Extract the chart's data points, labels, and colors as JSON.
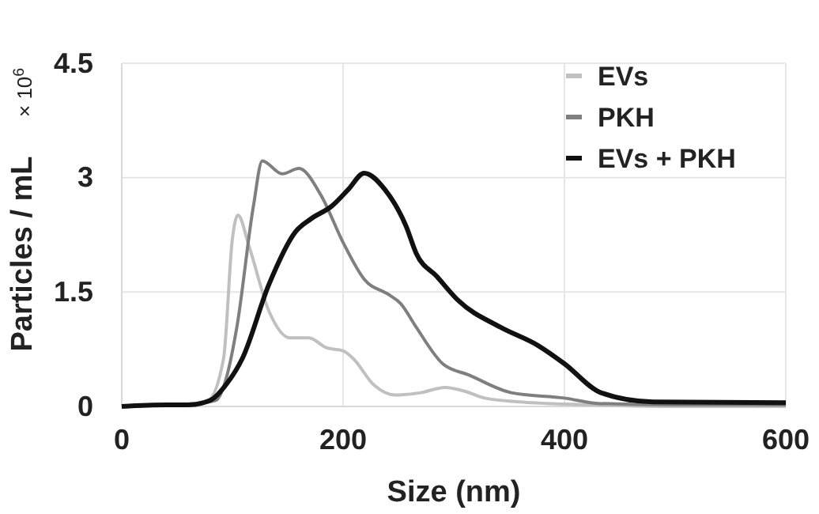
{
  "chart_data": {
    "type": "line",
    "xlabel": "Size (nm)",
    "ylabel": "Particles / mL",
    "annotations": [
      "× 10$^{6}$"
    ],
    "xlim": [
      0,
      600
    ],
    "xticks": [
      0,
      200,
      400,
      600
    ],
    "ylim": [
      0,
      4.5
    ],
    "yticks": [
      0,
      1.5,
      3,
      4.5
    ],
    "grid": true,
    "legend": "top right",
    "marker": "none",
    "line_style": "solid",
    "series": [
      {
        "name": "EVs",
        "color": "#c0c0c0",
        "x": [
          0,
          40,
          60,
          78,
          92,
          100,
          105,
          115,
          133,
          152,
          169,
          185,
          200,
          209,
          228,
          247,
          270,
          292,
          310,
          328,
          360,
          400,
          450,
          500,
          600
        ],
        "values": [
          0,
          0.02,
          0.03,
          0.08,
          0.63,
          2.2,
          2.51,
          2.1,
          1.25,
          0.9,
          0.9,
          0.77,
          0.73,
          0.63,
          0.28,
          0.15,
          0.18,
          0.25,
          0.2,
          0.11,
          0.06,
          0.03,
          0.01,
          0,
          0
        ]
      },
      {
        "name": "PKH",
        "color": "#7f7f7f",
        "x": [
          0,
          40,
          60,
          85,
          95,
          104,
          119,
          127,
          145,
          160,
          180,
          200,
          219,
          242,
          252,
          266,
          290,
          314,
          352,
          400,
          430,
          500,
          600
        ],
        "values": [
          0,
          0.02,
          0.03,
          0.08,
          0.4,
          1.04,
          2.63,
          3.22,
          3.05,
          3.12,
          2.77,
          2.15,
          1.67,
          1.46,
          1.35,
          1.04,
          0.56,
          0.41,
          0.18,
          0.11,
          0.04,
          0.02,
          0.02
        ]
      },
      {
        "name": "EVs + PKH",
        "color": "#111111",
        "x": [
          0,
          40,
          60,
          80,
          95,
          109,
          133,
          157,
          171,
          190,
          205,
          219,
          238,
          257,
          266,
          285,
          304,
          342,
          376,
          400,
          433,
          480,
          600
        ],
        "values": [
          0,
          0.02,
          0.02,
          0.08,
          0.3,
          0.63,
          1.6,
          2.29,
          2.46,
          2.63,
          2.85,
          3.06,
          2.84,
          2.36,
          2.01,
          1.7,
          1.39,
          1.04,
          0.8,
          0.56,
          0.18,
          0.06,
          0.05
        ]
      }
    ]
  }
}
